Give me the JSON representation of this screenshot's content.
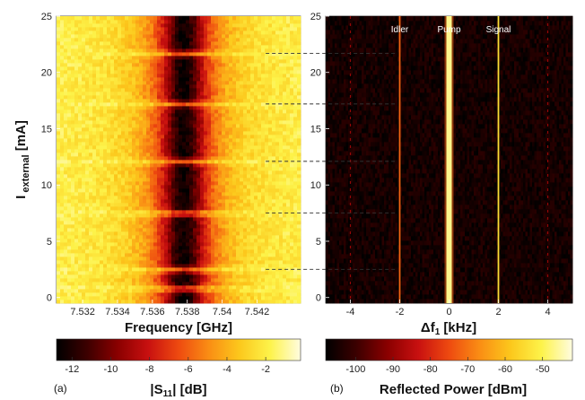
{
  "chart_data": [
    {
      "panel": "a",
      "type": "heatmap",
      "xlabel": "Frequency [GHz]",
      "ylabel": "I external [mA]",
      "xlim": [
        7.5305,
        7.5445
      ],
      "ylim": [
        -0.5,
        25
      ],
      "x_ticks": [
        7.532,
        7.534,
        7.536,
        7.538,
        7.54,
        7.542
      ],
      "x_tick_labels": [
        "7.532",
        "7.534",
        "7.536",
        "7.538",
        "7.54",
        "7.542"
      ],
      "y_ticks": [
        0,
        5,
        10,
        15,
        20,
        25
      ],
      "resonance_center_ghz": 7.5378,
      "resonance_min_db": -12.5,
      "resonance_halfwidth_ghz": 0.0013,
      "background_db": -1.5,
      "bright_lines_ma": [
        0.8,
        2.5,
        7.5,
        12.1,
        17.2,
        21.7
      ],
      "colorbar": {
        "label": "|S11| [dB]",
        "range": [
          -12.8,
          -0.2
        ],
        "ticks": [
          -12,
          -10,
          -8,
          -6,
          -4,
          -2
        ]
      }
    },
    {
      "panel": "b",
      "type": "heatmap",
      "xlabel": "Δf1 [kHz]",
      "ylabel": "",
      "xlim": [
        -5,
        5
      ],
      "ylim": [
        -0.5,
        25
      ],
      "x_ticks": [
        -4,
        -2,
        0,
        2,
        4
      ],
      "y_ticks": [
        0,
        5,
        10,
        15,
        20,
        25
      ],
      "tones": [
        {
          "name": "Idler",
          "offset_khz": -2
        },
        {
          "name": "Pump",
          "offset_khz": 0
        },
        {
          "name": "Signal",
          "offset_khz": 2
        }
      ],
      "weak_tones_khz": [
        -4,
        4
      ],
      "background_dbm": -105,
      "colorbar": {
        "label": "Reflected Power [dBm]",
        "range": [
          -108,
          -42
        ],
        "ticks": [
          -100,
          -90,
          -80,
          -70,
          -60,
          -50
        ]
      }
    }
  ],
  "dashed_guides_ma": [
    2.5,
    7.5,
    12.1,
    17.2,
    21.7
  ],
  "figure": {
    "panel_a_label": "(a)",
    "panel_b_label": "(b)"
  },
  "colormap": [
    "#000000",
    "#3c0000",
    "#8a0000",
    "#c81010",
    "#ee4a10",
    "#fa8e14",
    "#fcc81c",
    "#fdf34a",
    "#fffce0"
  ]
}
